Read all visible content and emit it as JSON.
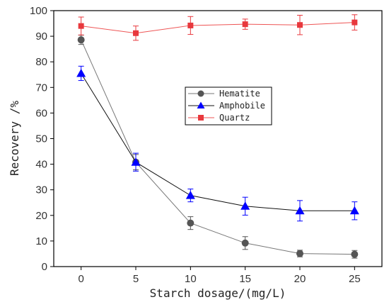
{
  "chart_data": {
    "type": "line",
    "xlabel": "Starch dosage/(mg/L)",
    "ylabel": "Recovery /%",
    "xlim": [
      -2.5,
      27.5
    ],
    "ylim": [
      0,
      100
    ],
    "xticks": [
      0,
      5,
      10,
      15,
      20,
      25
    ],
    "yticks": [
      0,
      10,
      20,
      30,
      40,
      50,
      60,
      70,
      80,
      90,
      100
    ],
    "x": [
      0,
      5,
      10,
      15,
      20,
      25
    ],
    "legend_position": "center-right",
    "series": [
      {
        "name": "Hematite",
        "marker": "circle",
        "color": "#555555",
        "line_color": "#777777",
        "values": [
          88.6,
          40.8,
          17.0,
          9.2,
          5.1,
          4.8
        ],
        "errors": [
          1.8,
          3.0,
          2.5,
          2.5,
          1.3,
          1.5
        ]
      },
      {
        "name": "Amphobile",
        "marker": "triangle",
        "color": "#0000ff",
        "line_color": "#111111",
        "values": [
          75.5,
          40.8,
          27.8,
          23.6,
          21.8,
          21.8
        ],
        "errors": [
          2.8,
          3.5,
          2.5,
          3.5,
          4.0,
          3.5
        ]
      },
      {
        "name": "Quartz",
        "marker": "square",
        "color": "#e8383d",
        "line_color": "#ee5555",
        "values": [
          94.0,
          91.2,
          94.2,
          94.7,
          94.4,
          95.4
        ],
        "errors": [
          3.5,
          2.8,
          3.5,
          2.0,
          3.8,
          3.0
        ]
      }
    ]
  }
}
